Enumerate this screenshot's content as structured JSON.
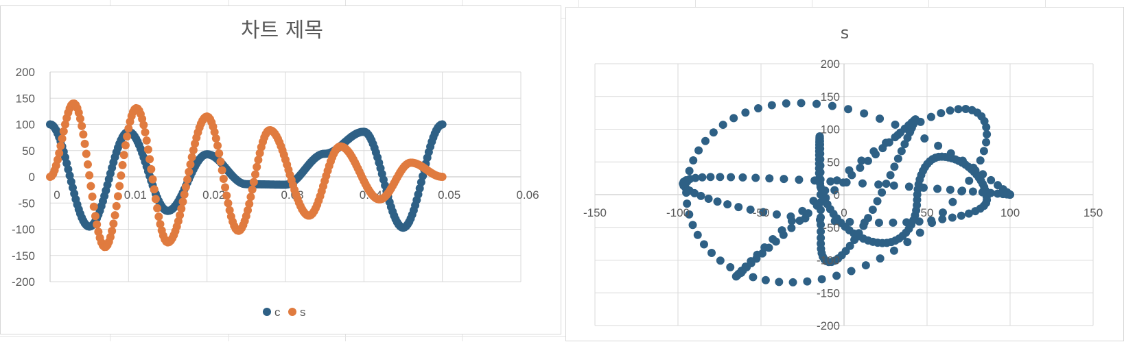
{
  "chart_data": [
    {
      "type": "scatter",
      "title": "차트 제목",
      "xlim": [
        0,
        0.06
      ],
      "ylim": [
        -200,
        200
      ],
      "x_ticks": [
        "0",
        "0.01",
        "0.02",
        "0.03",
        "0.04",
        "0.05",
        "0.06"
      ],
      "y_ticks": [
        "200",
        "150",
        "100",
        "50",
        "0",
        "-50",
        "-100",
        "-150",
        "-200"
      ],
      "grid": true,
      "legend_position": "bottom",
      "x_range": [
        0,
        0.05
      ],
      "series": [
        {
          "name": "c",
          "color": "#2e6085",
          "x": [
            0,
            0.005,
            0.01,
            0.015,
            0.02,
            0.025,
            0.03,
            0.035,
            0.04,
            0.045,
            0.05
          ],
          "values": [
            100,
            -95,
            86,
            -65,
            43,
            -14,
            -15,
            44,
            86,
            -97,
            100
          ]
        },
        {
          "name": "s",
          "color": "#e07b3f",
          "x": [
            0,
            0.003,
            0.007,
            0.011,
            0.015,
            0.02,
            0.024,
            0.028,
            0.033,
            0.037,
            0.042,
            0.046,
            0.05
          ],
          "values": [
            0,
            140,
            -134,
            131,
            -125,
            115,
            -103,
            89,
            -74,
            58,
            -43,
            27,
            0
          ]
        }
      ]
    },
    {
      "type": "scatter",
      "title": "s",
      "xlim": [
        -150,
        150
      ],
      "ylim": [
        -200,
        200
      ],
      "x_ticks": [
        "-150",
        "-100",
        "-50",
        "0",
        "50",
        "100",
        "150"
      ],
      "y_ticks": [
        "200",
        "150",
        "100",
        "50",
        "0",
        "-50",
        "-100",
        "-150",
        "-200"
      ],
      "grid": true,
      "series": [
        {
          "name": "",
          "color": "#2e6085",
          "x_from": "c",
          "y_from": "s"
        }
      ]
    }
  ]
}
